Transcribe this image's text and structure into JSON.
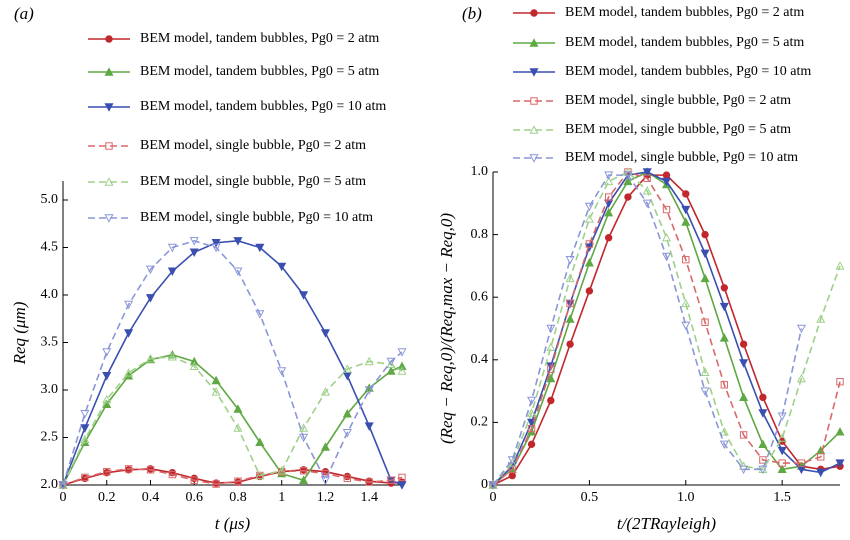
{
  "chart_data": [
    {
      "type": "line",
      "annotation": "(a)",
      "x_label": "t (μs)",
      "y_label": "Req (μm)",
      "xlim": [
        0,
        1.55
      ],
      "ylim": [
        2.0,
        5.2
      ],
      "xticks": [
        0,
        0.2,
        0.4,
        0.6,
        0.8,
        1,
        1.2,
        1.4
      ],
      "yticks": [
        {
          "value": 2,
          "label": "2.0"
        },
        2.5,
        {
          "value": 3,
          "label": "3.0"
        },
        3.5,
        {
          "value": 4,
          "label": "4.0"
        },
        4.5,
        {
          "value": 5,
          "label": "5.0"
        }
      ],
      "x": [
        0,
        0.1,
        0.2,
        0.3,
        0.4,
        0.5,
        0.6,
        0.7,
        0.8,
        0.9,
        1.0,
        1.1,
        1.2,
        1.3,
        1.4,
        1.5,
        1.55
      ],
      "series": [
        {
          "name": "BEM model, tandem bubbles, Pg0 = 2 atm",
          "color": "#c0282d",
          "marker": "circle",
          "dashed": false,
          "values": [
            2.0,
            2.07,
            2.13,
            2.16,
            2.17,
            2.13,
            2.07,
            2.02,
            2.03,
            2.09,
            2.14,
            2.16,
            2.14,
            2.09,
            2.04,
            2.02,
            2.03
          ]
        },
        {
          "name": "BEM model, tandem bubbles, Pg0 = 5 atm",
          "color": "#5fa843",
          "marker": "triangle-up",
          "dashed": false,
          "values": [
            2.0,
            2.45,
            2.85,
            3.15,
            3.32,
            3.37,
            3.3,
            3.1,
            2.8,
            2.45,
            2.12,
            2.05,
            2.4,
            2.75,
            3.02,
            3.2,
            3.25
          ]
        },
        {
          "name": "BEM model, tandem bubbles, Pg0 = 10 atm",
          "color": "#3a4fb0",
          "marker": "triangle-down",
          "dashed": false,
          "values": [
            2.0,
            2.6,
            3.15,
            3.6,
            3.97,
            4.25,
            4.45,
            4.55,
            4.57,
            4.5,
            4.3,
            4.0,
            3.6,
            3.15,
            2.62,
            2.05,
            2.0
          ]
        },
        {
          "name": "BEM model, single bubble, Pg0 = 2 atm",
          "color": "#d9686a",
          "marker": "square",
          "dashed": true,
          "values": [
            2.0,
            2.08,
            2.14,
            2.17,
            2.16,
            2.11,
            2.05,
            2.01,
            2.04,
            2.1,
            2.14,
            2.15,
            2.12,
            2.07,
            2.03,
            2.05,
            2.08
          ]
        },
        {
          "name": "BEM model, single bubble, Pg0 = 5 atm",
          "color": "#9fd08a",
          "marker": "triangle-up",
          "dashed": true,
          "values": [
            2.0,
            2.48,
            2.9,
            3.18,
            3.33,
            3.35,
            3.25,
            2.98,
            2.6,
            2.1,
            2.15,
            2.6,
            2.98,
            3.22,
            3.3,
            3.27,
            3.2
          ]
        },
        {
          "name": "BEM model, single bubble, Pg0 = 10 atm",
          "color": "#8a96d8",
          "marker": "triangle-down",
          "dashed": true,
          "values": [
            2.0,
            2.75,
            3.4,
            3.9,
            4.27,
            4.5,
            4.57,
            4.5,
            4.25,
            3.8,
            3.2,
            2.5,
            2.05,
            2.55,
            3.0,
            3.3,
            3.4
          ]
        }
      ]
    },
    {
      "type": "line",
      "annotation": "(b)",
      "x_label": "t/(2TRayleigh)",
      "y_label": "(Req − Req,0)/(Req,max − Req,0)",
      "xlim": [
        0,
        1.8
      ],
      "ylim": [
        0,
        1.0
      ],
      "xticks": [
        0,
        0.5,
        {
          "value": 1,
          "label": "1.0"
        },
        1.5
      ],
      "yticks": [
        0,
        0.2,
        0.4,
        0.6,
        0.8,
        {
          "value": 1,
          "label": "1.0"
        }
      ],
      "x": [
        0,
        0.1,
        0.2,
        0.3,
        0.4,
        0.5,
        0.6,
        0.7,
        0.8,
        0.9,
        1.0,
        1.1,
        1.2,
        1.3,
        1.4,
        1.5,
        1.6,
        1.7,
        1.8
      ],
      "series": [
        {
          "name": "BEM model, tandem bubbles, Pg0 = 2 atm",
          "color": "#c0282d",
          "marker": "circle",
          "dashed": false,
          "values": [
            0,
            0.03,
            0.13,
            0.27,
            0.45,
            0.62,
            0.79,
            0.92,
            0.99,
            0.99,
            0.93,
            0.8,
            0.63,
            0.45,
            0.28,
            0.14,
            0.06,
            0.05,
            0.06
          ]
        },
        {
          "name": "BEM model, tandem bubbles, Pg0 = 5 atm",
          "color": "#5fa843",
          "marker": "triangle-up",
          "dashed": false,
          "values": [
            0,
            0.05,
            0.17,
            0.34,
            0.53,
            0.71,
            0.87,
            0.97,
            1.0,
            0.96,
            0.84,
            0.66,
            0.47,
            0.28,
            0.13,
            0.05,
            0.06,
            0.11,
            0.17
          ]
        },
        {
          "name": "BEM model, tandem bubbles, Pg0 = 10 atm",
          "color": "#3a4fb0",
          "marker": "triangle-down",
          "dashed": false,
          "values": [
            0,
            0.06,
            0.2,
            0.38,
            0.58,
            0.76,
            0.9,
            0.99,
            1.0,
            0.97,
            0.88,
            0.74,
            0.57,
            0.39,
            0.23,
            0.11,
            0.05,
            0.04,
            0.07
          ]
        },
        {
          "name": "BEM model, single bubble, Pg0 = 2 atm",
          "color": "#d9686a",
          "marker": "square",
          "dashed": true,
          "values": [
            0,
            0.05,
            0.18,
            0.37,
            0.58,
            0.77,
            0.92,
            1.0,
            0.98,
            0.88,
            0.72,
            0.52,
            0.32,
            0.16,
            0.08,
            0.07,
            0.07,
            0.09,
            0.33
          ]
        },
        {
          "name": "BEM model, single bubble, Pg0 = 5 atm",
          "color": "#9fd08a",
          "marker": "triangle-up",
          "dashed": true,
          "values": [
            0,
            0.07,
            0.23,
            0.44,
            0.66,
            0.85,
            0.97,
            1.0,
            0.94,
            0.79,
            0.58,
            0.36,
            0.17,
            0.06,
            0.05,
            0.15,
            0.34,
            0.53,
            0.7
          ]
        },
        {
          "name": "BEM model, single bubble, Pg0 = 10 atm",
          "color": "#8a96d8",
          "marker": "triangle-down",
          "dashed": true,
          "values": [
            0,
            0.08,
            0.27,
            0.5,
            0.72,
            0.89,
            0.99,
            0.99,
            0.9,
            0.73,
            0.51,
            0.3,
            0.13,
            0.05,
            0.05,
            0.22,
            0.5,
            null,
            null
          ]
        }
      ]
    }
  ]
}
